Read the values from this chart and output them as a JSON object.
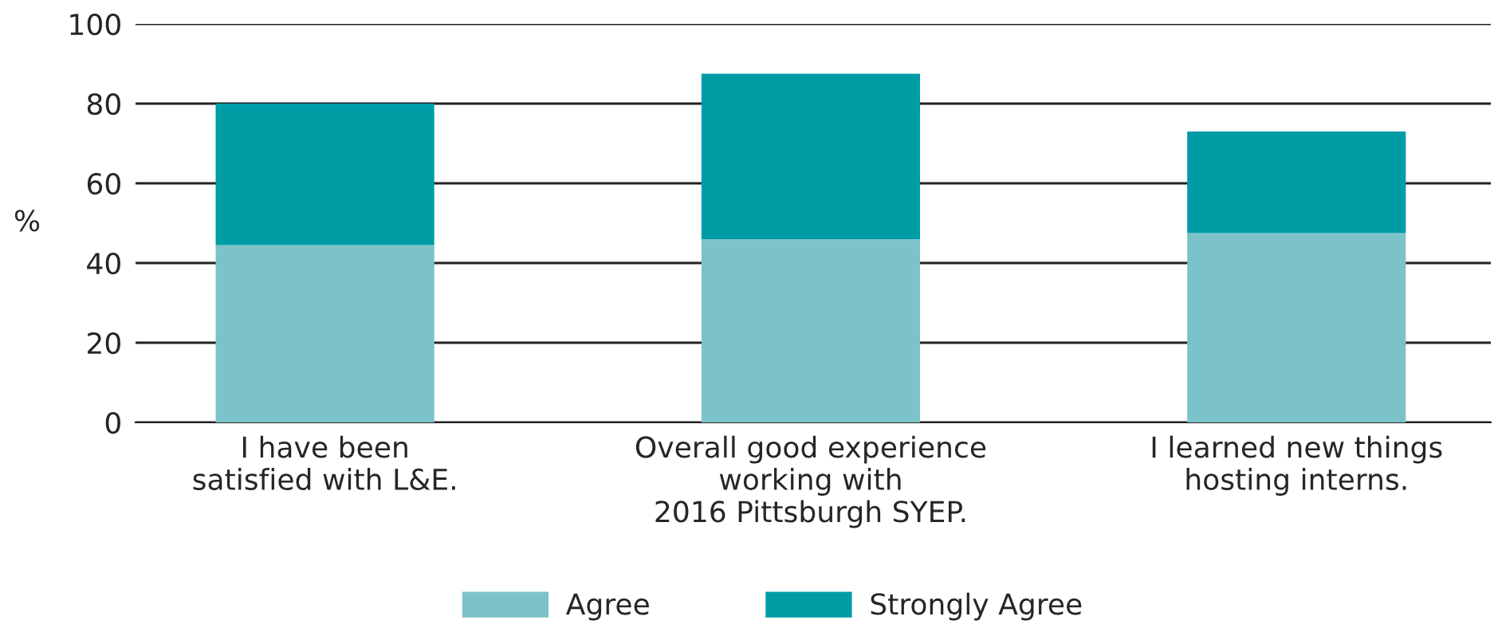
{
  "chart_data": {
    "type": "bar",
    "stacked": true,
    "ylabel": "%",
    "categories": [
      "I have been\nsatisfied with L&E.",
      "Overall good experience\nworking with\n2016 Pittsburgh SYEP.",
      "I learned new things\nhosting interns."
    ],
    "series": [
      {
        "name": "Agree",
        "color": "#7cc3c9",
        "values": [
          44.5,
          46,
          47.5
        ]
      },
      {
        "name": "Strongly Agree",
        "color": "#009ca6",
        "values": [
          35.5,
          41.5,
          25.5
        ]
      }
    ],
    "ylim": [
      0,
      100
    ],
    "yticks": [
      0,
      20,
      40,
      60,
      80,
      100
    ],
    "grid": "y",
    "legend": "bottom"
  }
}
